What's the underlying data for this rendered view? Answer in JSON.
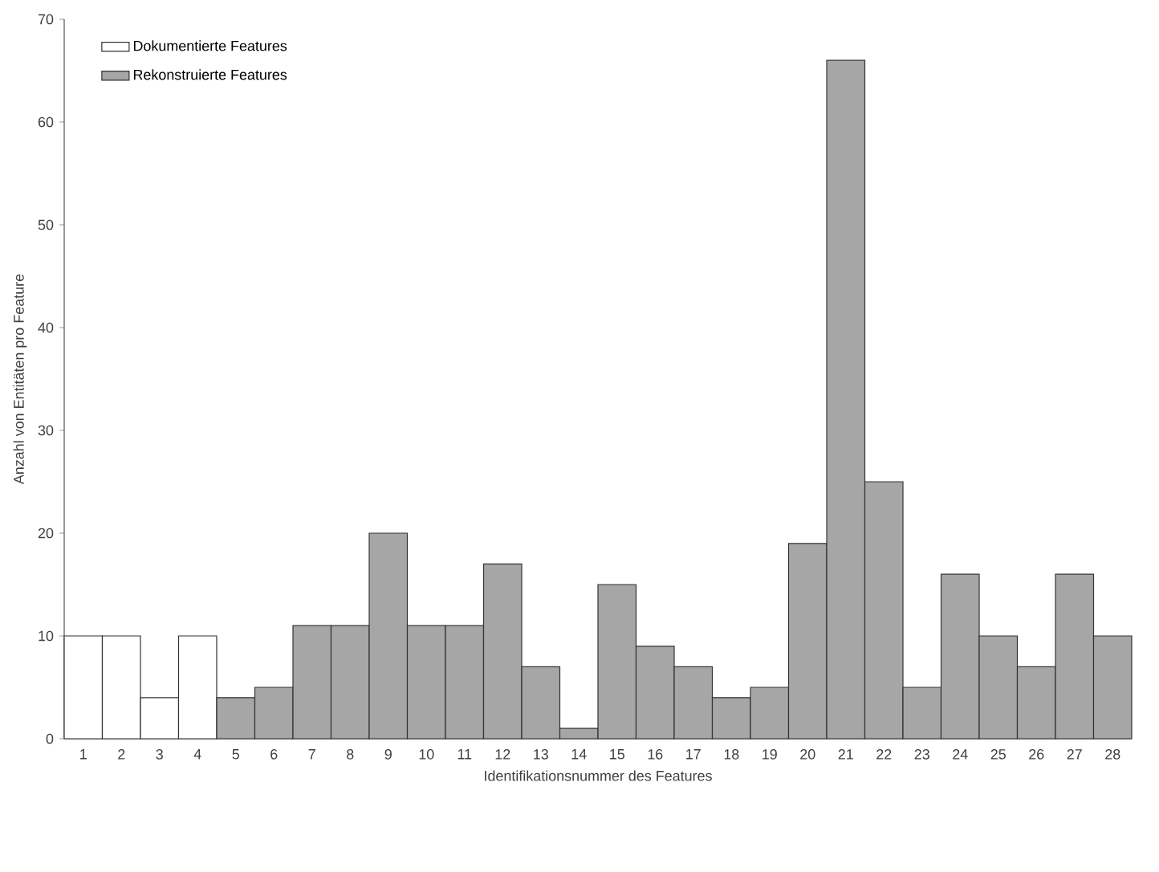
{
  "chart_data": {
    "type": "bar",
    "xlabel": "Identifikationsnummer des Features",
    "ylabel": "Anzahl von Entitäten pro Feature",
    "categories": [
      "1",
      "2",
      "3",
      "4",
      "5",
      "6",
      "7",
      "8",
      "9",
      "10",
      "11",
      "12",
      "13",
      "14",
      "15",
      "16",
      "17",
      "18",
      "19",
      "20",
      "21",
      "22",
      "23",
      "24",
      "25",
      "26",
      "27",
      "28"
    ],
    "series": [
      {
        "name": "Dokumentierte Features",
        "color": "#ffffff",
        "values": [
          10,
          10,
          4,
          10,
          null,
          null,
          null,
          null,
          null,
          null,
          null,
          null,
          null,
          null,
          null,
          null,
          null,
          null,
          null,
          null,
          null,
          null,
          null,
          null,
          null,
          null,
          null,
          null
        ]
      },
      {
        "name": "Rekonstruierte Features",
        "color": "#a6a6a6",
        "values": [
          null,
          null,
          null,
          null,
          4,
          5,
          11,
          11,
          20,
          11,
          11,
          17,
          7,
          1,
          15,
          9,
          7,
          4,
          5,
          19,
          66,
          25,
          5,
          16,
          10,
          7,
          16,
          10
        ]
      }
    ],
    "ylim": [
      0,
      70
    ],
    "yticks": [
      0,
      10,
      20,
      30,
      40,
      50,
      60,
      70
    ],
    "grid": false,
    "legend": "top left"
  }
}
